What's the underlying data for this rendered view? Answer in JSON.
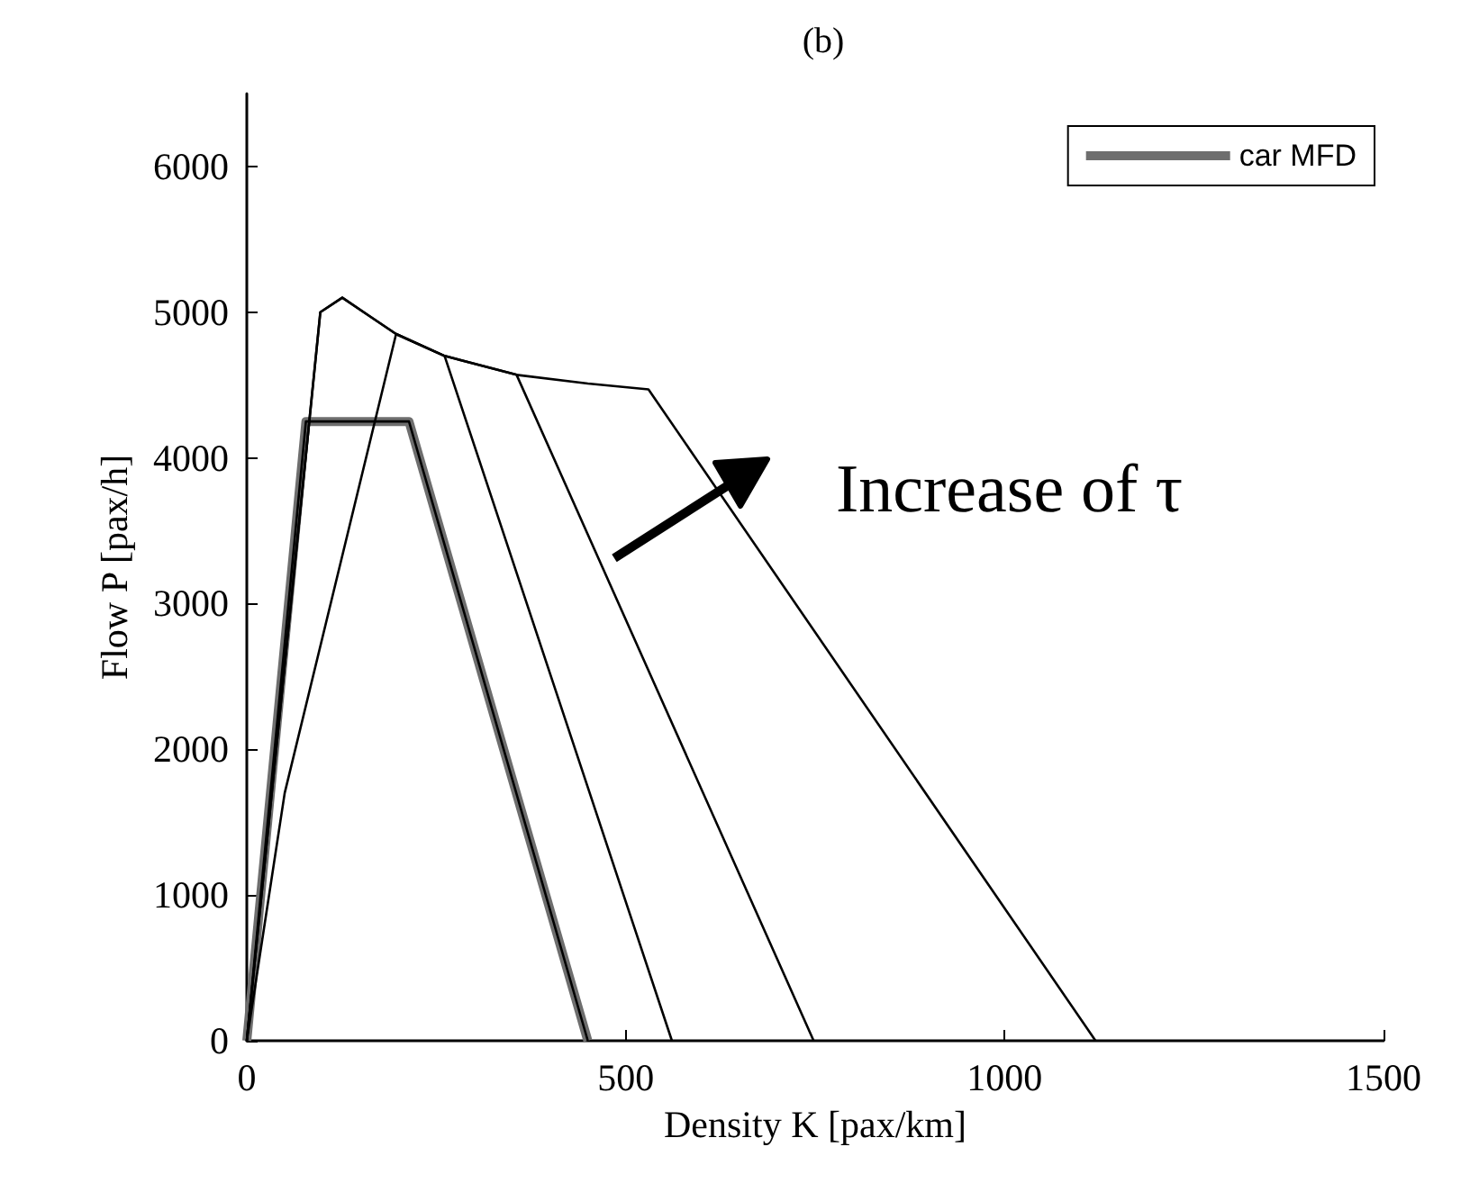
{
  "chart_data": {
    "type": "line",
    "title": "(b)",
    "xlabel": "Density K [pax/km]",
    "ylabel": "Flow P [pax/h]",
    "annotations": [
      "Increase of τ"
    ],
    "xlim": [
      0,
      1500
    ],
    "xticks": [
      0,
      500,
      1000,
      1500
    ],
    "ylim": [
      0,
      6500
    ],
    "yticks": [
      0,
      1000,
      2000,
      3000,
      4000,
      5000,
      6000
    ],
    "grid": false,
    "legend": "top right",
    "marker": "none",
    "line_style": "solid",
    "series": [
      {
        "name": "car MFD",
        "color": "#6e6e6e",
        "x": [
          0,
          78,
          214,
          450
        ],
        "values": [
          0,
          4250,
          4250,
          0
        ]
      },
      {
        "color": "#000000",
        "x": [
          0,
          78,
          214,
          450
        ],
        "values": [
          0,
          4250,
          4250,
          0
        ]
      },
      {
        "color": "#000000",
        "x": [
          0,
          97,
          126,
          160,
          197,
          261,
          561
        ],
        "values": [
          0,
          5000,
          5100,
          4980,
          4850,
          4700,
          0
        ]
      },
      {
        "color": "#000000",
        "x": [
          0,
          50,
          197,
          261,
          356,
          748
        ],
        "values": [
          0,
          1700,
          4850,
          4700,
          4570,
          0
        ]
      },
      {
        "color": "#000000",
        "x": [
          0,
          97,
          126,
          160,
          197,
          261,
          356,
          450,
          530,
          1120
        ],
        "values": [
          0,
          5000,
          5100,
          4980,
          4850,
          4700,
          4570,
          4510,
          4470,
          0
        ]
      }
    ]
  }
}
